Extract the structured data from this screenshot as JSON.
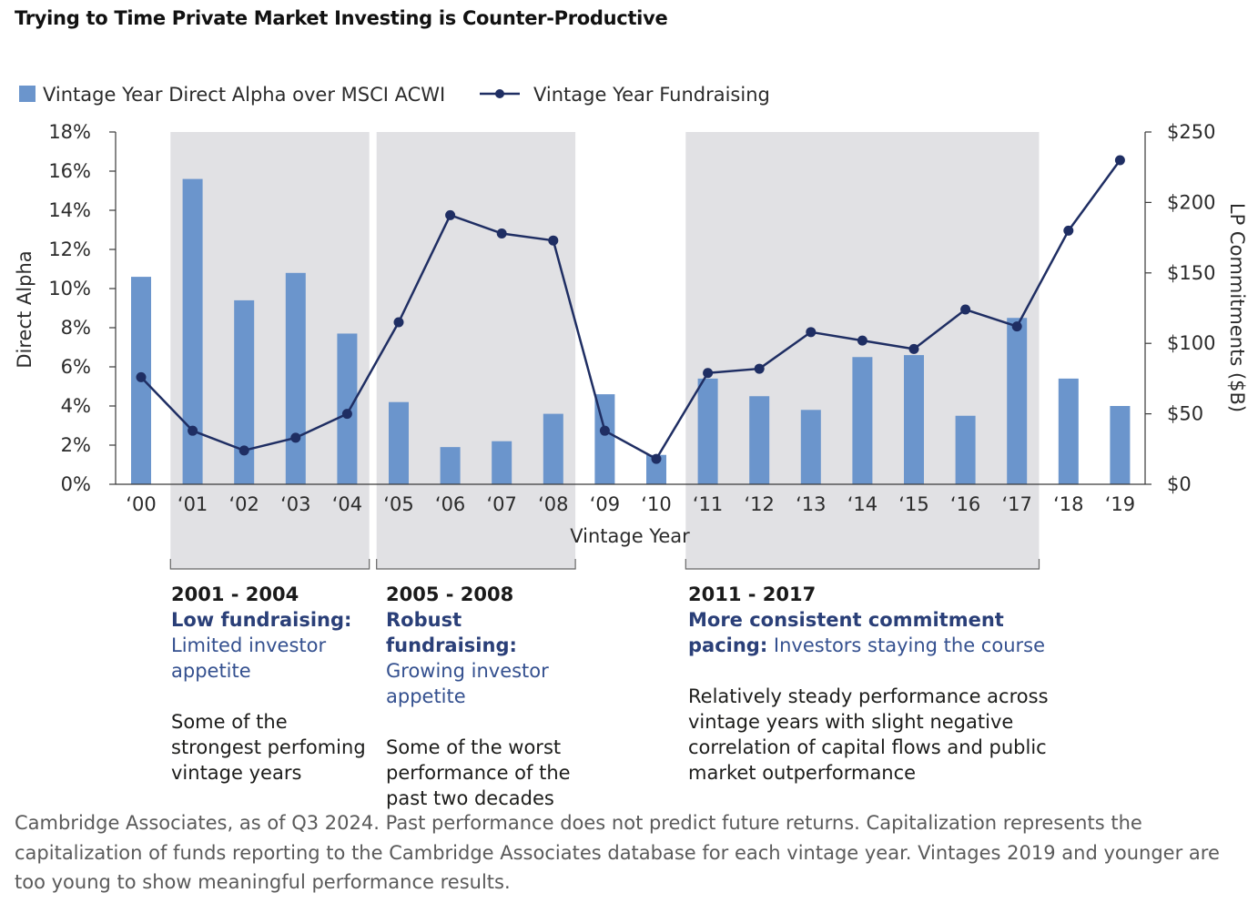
{
  "title": "Trying to Time Private Market Investing is Counter-Productive",
  "colors": {
    "bar": "#6b95cc",
    "line": "#1f2e63",
    "shade": "#e1e1e4",
    "axis": "#3a3a3a"
  },
  "chart_data": {
    "type": "bar",
    "title": "Trying to Time Private Market Investing is Counter-Productive",
    "xlabel": "Vintage Year",
    "ylabel": "Direct Alpha",
    "y2label": "LP Commitments ($B)",
    "categories": [
      "‘00",
      "‘01",
      "‘02",
      "‘03",
      "‘04",
      "‘05",
      "‘06",
      "‘07",
      "‘08",
      "‘09",
      "‘10",
      "‘11",
      "‘12",
      "‘13",
      "‘14",
      "‘15",
      "‘16",
      "‘17",
      "‘18",
      "‘19"
    ],
    "ylim": [
      0,
      18
    ],
    "y2lim": [
      0,
      250
    ],
    "yticks": [
      "0%",
      "2%",
      "4%",
      "6%",
      "8%",
      "10%",
      "12%",
      "14%",
      "16%",
      "18%"
    ],
    "y2ticks": [
      "$0",
      "$50",
      "$100",
      "$150",
      "$200",
      "$250"
    ],
    "series": [
      {
        "name": "Vintage Year Direct Alpha over MSCI ACWI",
        "type": "bar",
        "axis": "left",
        "values": [
          10.6,
          15.6,
          9.4,
          10.8,
          7.7,
          4.2,
          1.9,
          2.2,
          3.6,
          4.6,
          1.5,
          5.4,
          4.5,
          3.8,
          6.5,
          6.6,
          3.5,
          8.5,
          5.4,
          4.0
        ]
      },
      {
        "name": "Vintage Year Fundraising",
        "type": "line",
        "axis": "right",
        "values": [
          76,
          38,
          24,
          33,
          50,
          115,
          191,
          178,
          173,
          38,
          18,
          79,
          82,
          108,
          102,
          96,
          124,
          112,
          180,
          230
        ]
      }
    ],
    "legend_position": "top-left",
    "grid": false,
    "shaded_periods": [
      {
        "label": "2001 - 2004",
        "from": "‘01",
        "to": "‘04"
      },
      {
        "label": "2005 - 2008",
        "from": "‘05",
        "to": "‘08"
      },
      {
        "label": "2011 - 2017",
        "from": "‘11",
        "to": "‘17"
      }
    ]
  },
  "panels": [
    {
      "range": "2001 - 2004",
      "head": "Low fundraising:",
      "sub": "Limited investor appetite",
      "desc": "Some of the strongest perfoming vintage years"
    },
    {
      "range": "2005 - 2008",
      "head": "Robust fundraising:",
      "sub": "Growing investor appetite",
      "desc": "Some of the worst performance of the past two decades"
    },
    {
      "range": "2011 - 2017",
      "head": "More consistent commitment pacing:",
      "sub": "Investors staying the course",
      "desc": "Relatively steady performance across vintage years with slight negative correlation of capital flows and public market outperformance"
    }
  ],
  "footnote": "Cambridge Associates, as of Q3 2024. Past performance does not predict future returns.  Capitalization represents the capitalization of funds reporting to the Cambridge Associates database for each vintage year.  Vintages 2019 and younger are too young to show meaningful performance results."
}
